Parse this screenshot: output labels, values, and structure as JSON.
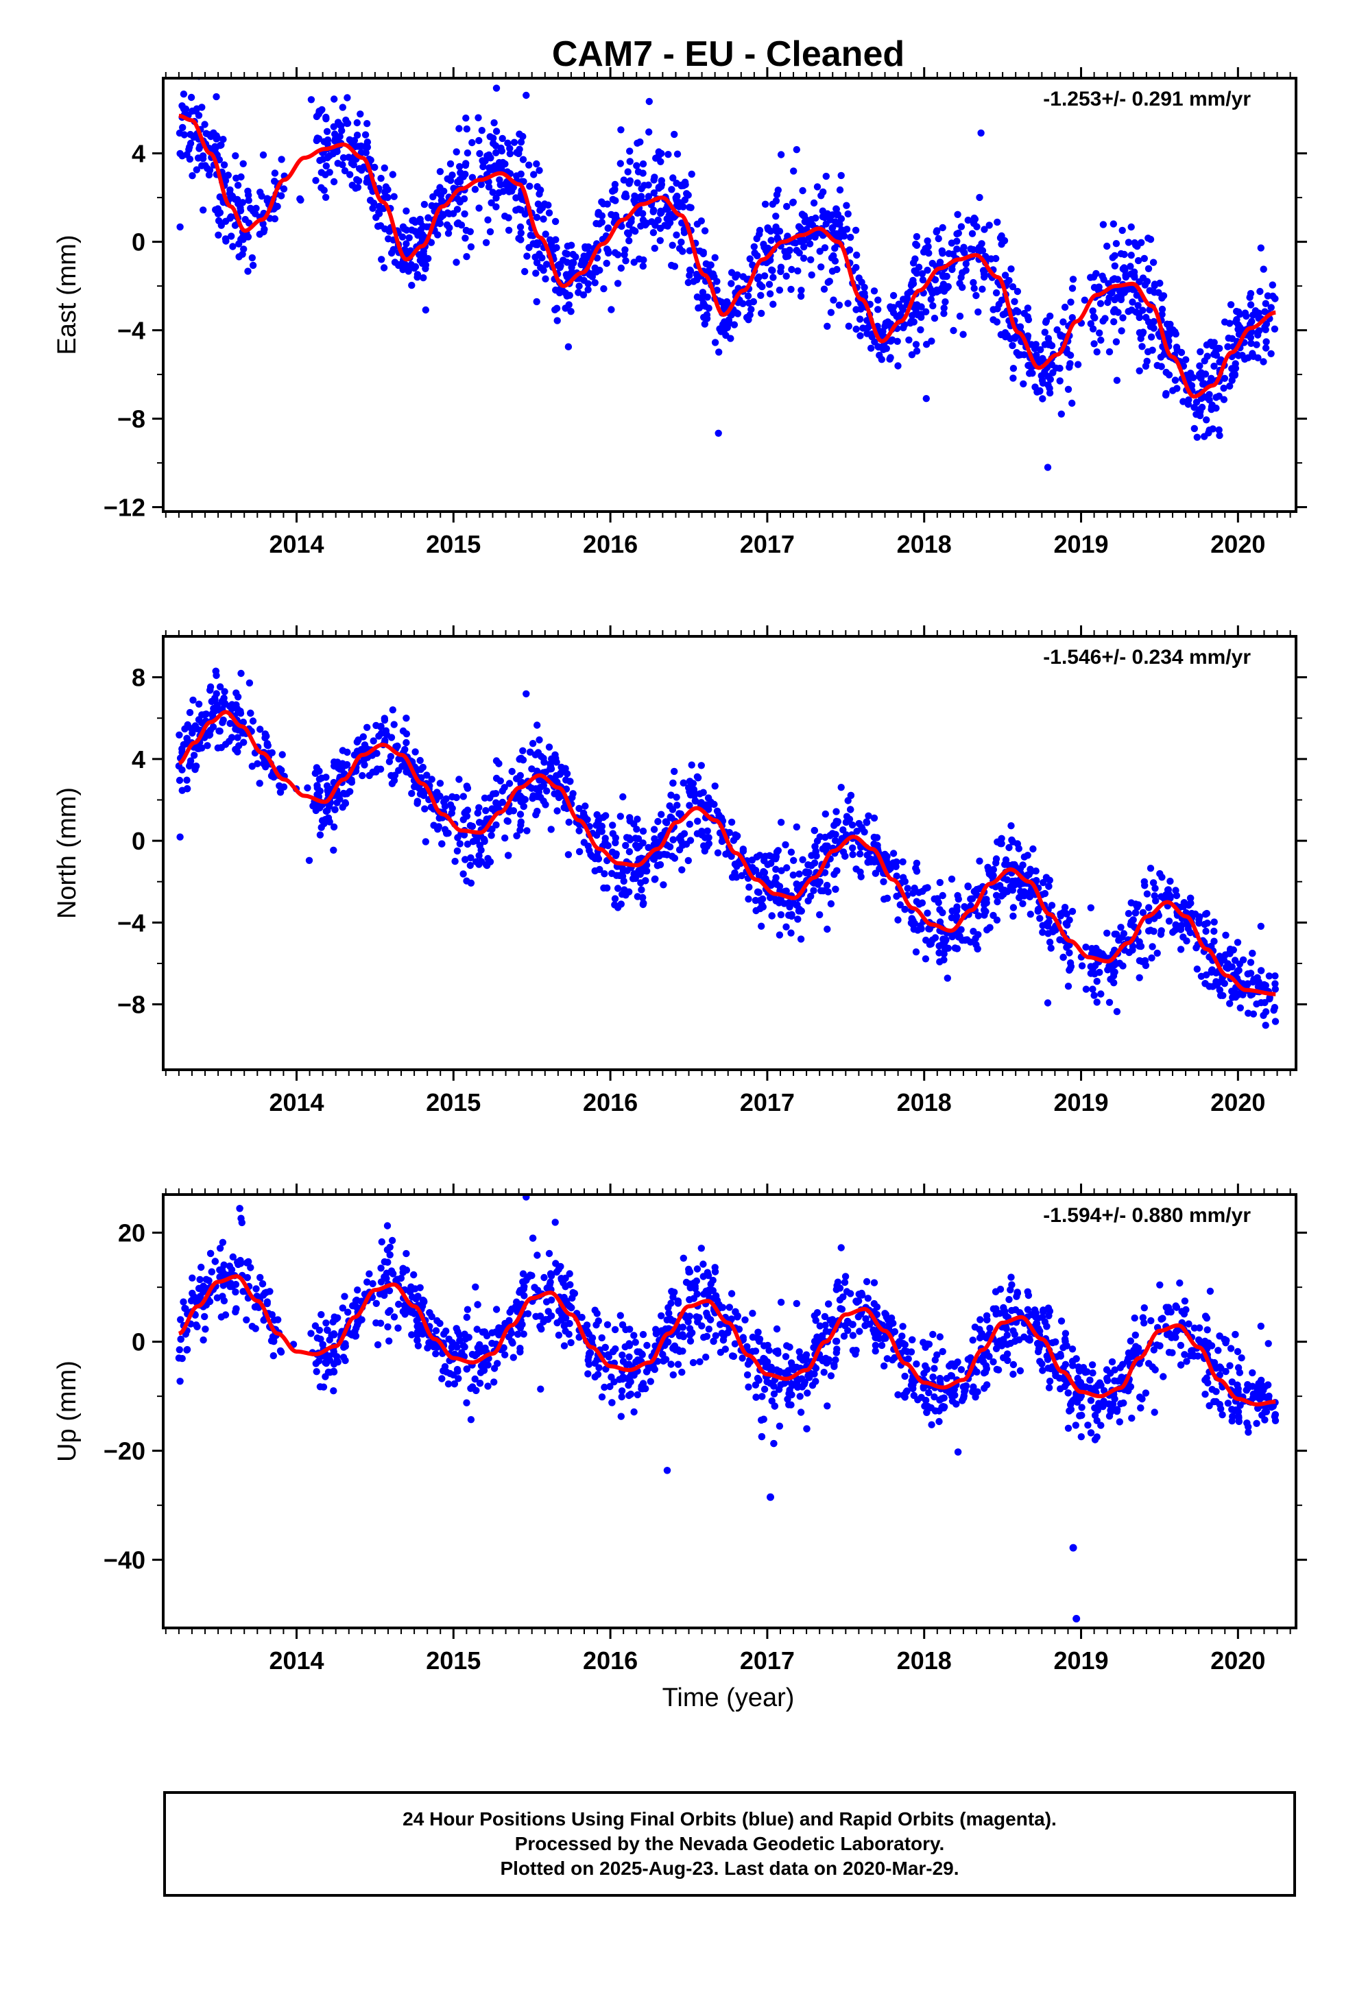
{
  "figure": {
    "title": "CAM7  - EU - Cleaned",
    "xlabel": "Time (year)",
    "caption": [
      "24 Hour Positions Using Final Orbits (blue) and Rapid Orbits (magenta).",
      "Processed by the Nevada Geodetic Laboratory.",
      "Plotted on 2025-Aug-23. Last data on 2020-Mar-29."
    ],
    "colors": {
      "points": "#0000ff",
      "fit": "#ff0000",
      "axes": "#000000"
    }
  },
  "chart_data": [
    {
      "type": "scatter",
      "ylabel": "East (mm)",
      "velocity": "-1.253+/- 0.291 mm/yr",
      "xlim": [
        2013.15,
        2020.37
      ],
      "ylim": [
        -12.2,
        7.4
      ],
      "xticks": [
        2014,
        2015,
        2016,
        2017,
        2018,
        2019,
        2020
      ],
      "yticks": [
        -12,
        -8,
        -4,
        0,
        4
      ],
      "ytick_labels": [
        "−12",
        "−8",
        "−4",
        "0",
        "4"
      ],
      "x_start": 2013.25,
      "x_end": 2020.24,
      "fit": {
        "points": [
          [
            2013.25,
            5.7
          ],
          [
            2013.33,
            5.5
          ],
          [
            2013.45,
            4.0
          ],
          [
            2013.58,
            1.6
          ],
          [
            2013.67,
            0.5
          ],
          [
            2013.78,
            1.0
          ],
          [
            2013.92,
            2.8
          ],
          [
            2014.05,
            3.8
          ],
          [
            2014.18,
            4.2
          ],
          [
            2014.3,
            4.4
          ],
          [
            2014.42,
            3.8
          ],
          [
            2014.55,
            1.8
          ],
          [
            2014.7,
            -0.8
          ],
          [
            2014.8,
            -0.2
          ],
          [
            2014.93,
            1.6
          ],
          [
            2015.05,
            2.4
          ],
          [
            2015.17,
            2.8
          ],
          [
            2015.3,
            3.1
          ],
          [
            2015.42,
            2.6
          ],
          [
            2015.55,
            0.2
          ],
          [
            2015.7,
            -2.0
          ],
          [
            2015.82,
            -1.4
          ],
          [
            2015.95,
            -0.1
          ],
          [
            2016.08,
            1.0
          ],
          [
            2016.2,
            1.7
          ],
          [
            2016.33,
            2.0
          ],
          [
            2016.45,
            1.2
          ],
          [
            2016.6,
            -1.5
          ],
          [
            2016.72,
            -3.3
          ],
          [
            2016.85,
            -2.2
          ],
          [
            2016.97,
            -0.8
          ],
          [
            2017.1,
            0.0
          ],
          [
            2017.22,
            0.3
          ],
          [
            2017.33,
            0.6
          ],
          [
            2017.45,
            0.0
          ],
          [
            2017.6,
            -2.6
          ],
          [
            2017.73,
            -4.5
          ],
          [
            2017.85,
            -3.6
          ],
          [
            2017.97,
            -2.2
          ],
          [
            2018.1,
            -1.2
          ],
          [
            2018.22,
            -0.8
          ],
          [
            2018.33,
            -0.6
          ],
          [
            2018.47,
            -1.6
          ],
          [
            2018.6,
            -4.1
          ],
          [
            2018.73,
            -5.7
          ],
          [
            2018.85,
            -5.1
          ],
          [
            2018.97,
            -3.6
          ],
          [
            2019.1,
            -2.4
          ],
          [
            2019.22,
            -2.0
          ],
          [
            2019.33,
            -1.9
          ],
          [
            2019.45,
            -2.9
          ],
          [
            2019.58,
            -5.2
          ],
          [
            2019.72,
            -7.0
          ],
          [
            2019.84,
            -6.5
          ],
          [
            2019.96,
            -5.0
          ],
          [
            2020.08,
            -3.9
          ],
          [
            2020.24,
            -3.2
          ]
        ]
      },
      "scatter": {
        "amp": 4.0,
        "noise": 0.95,
        "n": 1900,
        "sigma": 1.6,
        "spread": 1.1
      },
      "gaps": [
        [
          2013.91,
          2014.12
        ],
        [
          2018.95,
          2019.05
        ]
      ]
    },
    {
      "type": "scatter",
      "ylabel": "North (mm)",
      "velocity": "-1.546+/- 0.234 mm/yr",
      "xlim": [
        2013.15,
        2020.37
      ],
      "ylim": [
        -11.2,
        10.0
      ],
      "xticks": [
        2014,
        2015,
        2016,
        2017,
        2018,
        2019,
        2020
      ],
      "yticks": [
        -8,
        -4,
        0,
        4,
        8
      ],
      "ytick_labels": [
        "−8",
        "−4",
        "0",
        "4",
        "8"
      ],
      "x_start": 2013.25,
      "x_end": 2020.24,
      "fit": {
        "points": [
          [
            2013.25,
            3.8
          ],
          [
            2013.35,
            4.8
          ],
          [
            2013.45,
            5.8
          ],
          [
            2013.55,
            6.3
          ],
          [
            2013.65,
            5.6
          ],
          [
            2013.78,
            4.3
          ],
          [
            2013.92,
            3.0
          ],
          [
            2014.05,
            2.2
          ],
          [
            2014.18,
            1.9
          ],
          [
            2014.3,
            3.0
          ],
          [
            2014.42,
            4.2
          ],
          [
            2014.55,
            4.7
          ],
          [
            2014.67,
            4.2
          ],
          [
            2014.8,
            2.8
          ],
          [
            2014.93,
            1.3
          ],
          [
            2015.05,
            0.5
          ],
          [
            2015.17,
            0.4
          ],
          [
            2015.3,
            1.4
          ],
          [
            2015.42,
            2.6
          ],
          [
            2015.55,
            3.2
          ],
          [
            2015.67,
            2.6
          ],
          [
            2015.8,
            1.0
          ],
          [
            2015.93,
            -0.4
          ],
          [
            2016.05,
            -1.1
          ],
          [
            2016.17,
            -1.2
          ],
          [
            2016.3,
            -0.4
          ],
          [
            2016.42,
            0.9
          ],
          [
            2016.55,
            1.6
          ],
          [
            2016.67,
            1.0
          ],
          [
            2016.8,
            -0.6
          ],
          [
            2016.93,
            -1.9
          ],
          [
            2017.05,
            -2.6
          ],
          [
            2017.17,
            -2.8
          ],
          [
            2017.3,
            -1.8
          ],
          [
            2017.42,
            -0.5
          ],
          [
            2017.55,
            0.2
          ],
          [
            2017.67,
            -0.4
          ],
          [
            2017.8,
            -1.9
          ],
          [
            2017.93,
            -3.3
          ],
          [
            2018.05,
            -4.1
          ],
          [
            2018.17,
            -4.4
          ],
          [
            2018.3,
            -3.4
          ],
          [
            2018.42,
            -2.1
          ],
          [
            2018.55,
            -1.4
          ],
          [
            2018.67,
            -2.0
          ],
          [
            2018.8,
            -3.6
          ],
          [
            2018.93,
            -4.9
          ],
          [
            2019.05,
            -5.7
          ],
          [
            2019.17,
            -5.9
          ],
          [
            2019.3,
            -5.0
          ],
          [
            2019.42,
            -3.7
          ],
          [
            2019.55,
            -3.0
          ],
          [
            2019.67,
            -3.7
          ],
          [
            2019.8,
            -5.3
          ],
          [
            2019.93,
            -6.6
          ],
          [
            2020.05,
            -7.3
          ],
          [
            2020.24,
            -7.5
          ]
        ]
      },
      "scatter": {
        "amp": 2.3,
        "noise": 0.85,
        "n": 1900,
        "sigma": 1.5,
        "spread": 1.0
      },
      "gaps": [
        [
          2013.91,
          2014.12
        ],
        [
          2018.95,
          2019.05
        ]
      ]
    },
    {
      "type": "scatter",
      "ylabel": "Up (mm)",
      "velocity": "-1.594+/- 0.880 mm/yr",
      "xlim": [
        2013.15,
        2020.37
      ],
      "ylim": [
        -52.5,
        27.0
      ],
      "xticks": [
        2014,
        2015,
        2016,
        2017,
        2018,
        2019,
        2020
      ],
      "yticks": [
        -40,
        -20,
        0,
        20
      ],
      "ytick_labels": [
        "−40",
        "−20",
        "0",
        "20"
      ],
      "x_start": 2013.25,
      "x_end": 2020.24,
      "fit": {
        "points": [
          [
            2013.25,
            1.5
          ],
          [
            2013.37,
            6.5
          ],
          [
            2013.5,
            11.0
          ],
          [
            2013.62,
            12.0
          ],
          [
            2013.75,
            7.5
          ],
          [
            2013.88,
            1.5
          ],
          [
            2014.0,
            -1.8
          ],
          [
            2014.12,
            -2.3
          ],
          [
            2014.25,
            -0.8
          ],
          [
            2014.37,
            4.5
          ],
          [
            2014.5,
            9.5
          ],
          [
            2014.62,
            10.5
          ],
          [
            2014.75,
            6.5
          ],
          [
            2014.88,
            0.5
          ],
          [
            2015.0,
            -3.0
          ],
          [
            2015.12,
            -3.8
          ],
          [
            2015.25,
            -2.2
          ],
          [
            2015.37,
            3.0
          ],
          [
            2015.5,
            8.0
          ],
          [
            2015.62,
            9.0
          ],
          [
            2015.75,
            5.0
          ],
          [
            2015.88,
            -1.0
          ],
          [
            2016.0,
            -4.5
          ],
          [
            2016.12,
            -5.2
          ],
          [
            2016.25,
            -3.8
          ],
          [
            2016.37,
            1.5
          ],
          [
            2016.5,
            6.5
          ],
          [
            2016.62,
            7.5
          ],
          [
            2016.75,
            3.5
          ],
          [
            2016.88,
            -2.5
          ],
          [
            2017.0,
            -6.0
          ],
          [
            2017.12,
            -6.8
          ],
          [
            2017.25,
            -5.2
          ],
          [
            2017.37,
            0.0
          ],
          [
            2017.5,
            5.0
          ],
          [
            2017.62,
            6.0
          ],
          [
            2017.75,
            2.0
          ],
          [
            2017.88,
            -4.0
          ],
          [
            2018.0,
            -7.5
          ],
          [
            2018.12,
            -8.4
          ],
          [
            2018.25,
            -7.0
          ],
          [
            2018.37,
            -1.5
          ],
          [
            2018.5,
            3.5
          ],
          [
            2018.62,
            4.5
          ],
          [
            2018.75,
            0.5
          ],
          [
            2018.88,
            -5.5
          ],
          [
            2019.0,
            -9.2
          ],
          [
            2019.12,
            -10.0
          ],
          [
            2019.25,
            -8.5
          ],
          [
            2019.37,
            -3.0
          ],
          [
            2019.5,
            2.0
          ],
          [
            2019.62,
            3.0
          ],
          [
            2019.75,
            -1.0
          ],
          [
            2019.88,
            -7.0
          ],
          [
            2020.0,
            -10.5
          ],
          [
            2020.12,
            -11.5
          ],
          [
            2020.24,
            -11.0
          ]
        ]
      },
      "scatter": {
        "amp": 0.0,
        "noise": 3.6,
        "n": 1900,
        "sigma": 1.6,
        "spread": 4.0
      },
      "gaps": [
        [
          2013.91,
          2014.12
        ]
      ],
      "outliers": [
        [
          2017.02,
          -28.5
        ],
        [
          2018.95,
          -37.8
        ],
        [
          2018.97,
          -50.8
        ]
      ]
    }
  ]
}
